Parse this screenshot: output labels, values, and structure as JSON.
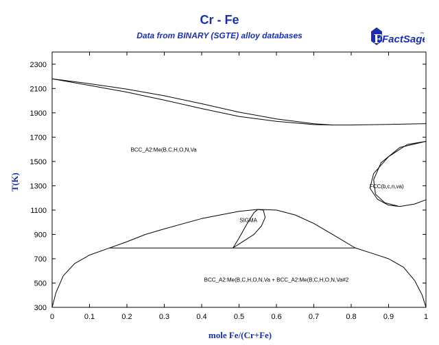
{
  "title": "Cr - Fe",
  "subtitle": "Data from BINARY (SGTE) alloy databases",
  "logo_text": "FactSage",
  "logo_tm": "™",
  "chart_data": {
    "type": "line",
    "xlabel": "mole Fe/(Cr+Fe)",
    "ylabel": "T(K)",
    "xlim": [
      0,
      1
    ],
    "ylim": [
      300,
      2400
    ],
    "xticks": [
      "0",
      "0.1",
      "0.2",
      "0.3",
      "0.4",
      "0.5",
      "0.6",
      "0.7",
      "0.8",
      "0.9",
      "1"
    ],
    "yticks": [
      "300",
      "500",
      "700",
      "900",
      "1100",
      "1300",
      "1500",
      "1700",
      "1900",
      "2100",
      "2300"
    ],
    "grid": false,
    "regions": [
      {
        "label": "BCC_A2:Me(B,C,H,O,N,Va",
        "x": 0.21,
        "y": 1580
      },
      {
        "label": "FCC(b,c,n,va)",
        "x": 0.895,
        "y": 1280
      },
      {
        "label": "SIGMA",
        "x": 0.525,
        "y": 1000
      },
      {
        "label": "BCC_A2:Me(B,C,H,O,N,Va + BCC_A2:Me(B,C,H,O,N,Va#2",
        "x": 0.6,
        "y": 510
      }
    ],
    "series": [
      {
        "points": [
          [
            0,
            2180
          ],
          [
            0.1,
            2140
          ],
          [
            0.2,
            2095
          ],
          [
            0.3,
            2040
          ],
          [
            0.4,
            1975
          ],
          [
            0.5,
            1905
          ],
          [
            0.6,
            1850
          ],
          [
            0.7,
            1810
          ],
          [
            0.75,
            1800
          ],
          [
            0.8,
            1800
          ],
          [
            0.9,
            1805
          ],
          [
            1,
            1811
          ]
        ]
      },
      {
        "points": [
          [
            0,
            2180
          ],
          [
            0.1,
            2125
          ],
          [
            0.2,
            2070
          ],
          [
            0.3,
            2005
          ],
          [
            0.4,
            1935
          ],
          [
            0.5,
            1870
          ],
          [
            0.6,
            1830
          ],
          [
            0.7,
            1803
          ],
          [
            0.75,
            1800
          ]
        ]
      },
      {
        "points": [
          [
            0,
            300
          ],
          [
            0.01,
            420
          ],
          [
            0.03,
            560
          ],
          [
            0.06,
            660
          ],
          [
            0.1,
            730
          ],
          [
            0.153,
            788
          ]
        ]
      },
      {
        "points": [
          [
            0.153,
            788
          ],
          [
            0.2,
            840
          ],
          [
            0.25,
            900
          ],
          [
            0.3,
            945
          ],
          [
            0.4,
            1030
          ],
          [
            0.5,
            1090
          ],
          [
            0.55,
            1105
          ],
          [
            0.6,
            1100
          ],
          [
            0.65,
            1060
          ],
          [
            0.7,
            990
          ],
          [
            0.75,
            900
          ],
          [
            0.81,
            790
          ]
        ]
      },
      {
        "points": [
          [
            0.81,
            790
          ],
          [
            0.86,
            740
          ],
          [
            0.9,
            700
          ],
          [
            0.94,
            630
          ],
          [
            0.97,
            520
          ],
          [
            0.99,
            400
          ],
          [
            1,
            300
          ]
        ]
      },
      {
        "points": [
          [
            0.153,
            788
          ],
          [
            0.81,
            788
          ]
        ]
      },
      {
        "points": [
          [
            0.484,
            790
          ],
          [
            0.5,
            870
          ],
          [
            0.52,
            980
          ],
          [
            0.54,
            1080
          ],
          [
            0.55,
            1105
          ]
        ]
      },
      {
        "points": [
          [
            0.484,
            790
          ],
          [
            0.51,
            840
          ],
          [
            0.54,
            900
          ],
          [
            0.56,
            970
          ],
          [
            0.57,
            1040
          ],
          [
            0.565,
            1100
          ],
          [
            0.55,
            1105
          ]
        ]
      },
      {
        "points": [
          [
            1,
            1665
          ],
          [
            0.95,
            1640
          ],
          [
            0.9,
            1540
          ],
          [
            0.86,
            1400
          ],
          [
            0.85,
            1280
          ],
          [
            0.87,
            1190
          ],
          [
            0.9,
            1140
          ],
          [
            0.93,
            1130
          ],
          [
            0.97,
            1150
          ],
          [
            1,
            1185
          ]
        ]
      },
      {
        "points": [
          [
            1,
            1665
          ],
          [
            0.93,
            1615
          ],
          [
            0.88,
            1490
          ],
          [
            0.86,
            1350
          ],
          [
            0.865,
            1230
          ],
          [
            0.89,
            1160
          ],
          [
            0.925,
            1133
          ]
        ]
      }
    ]
  }
}
